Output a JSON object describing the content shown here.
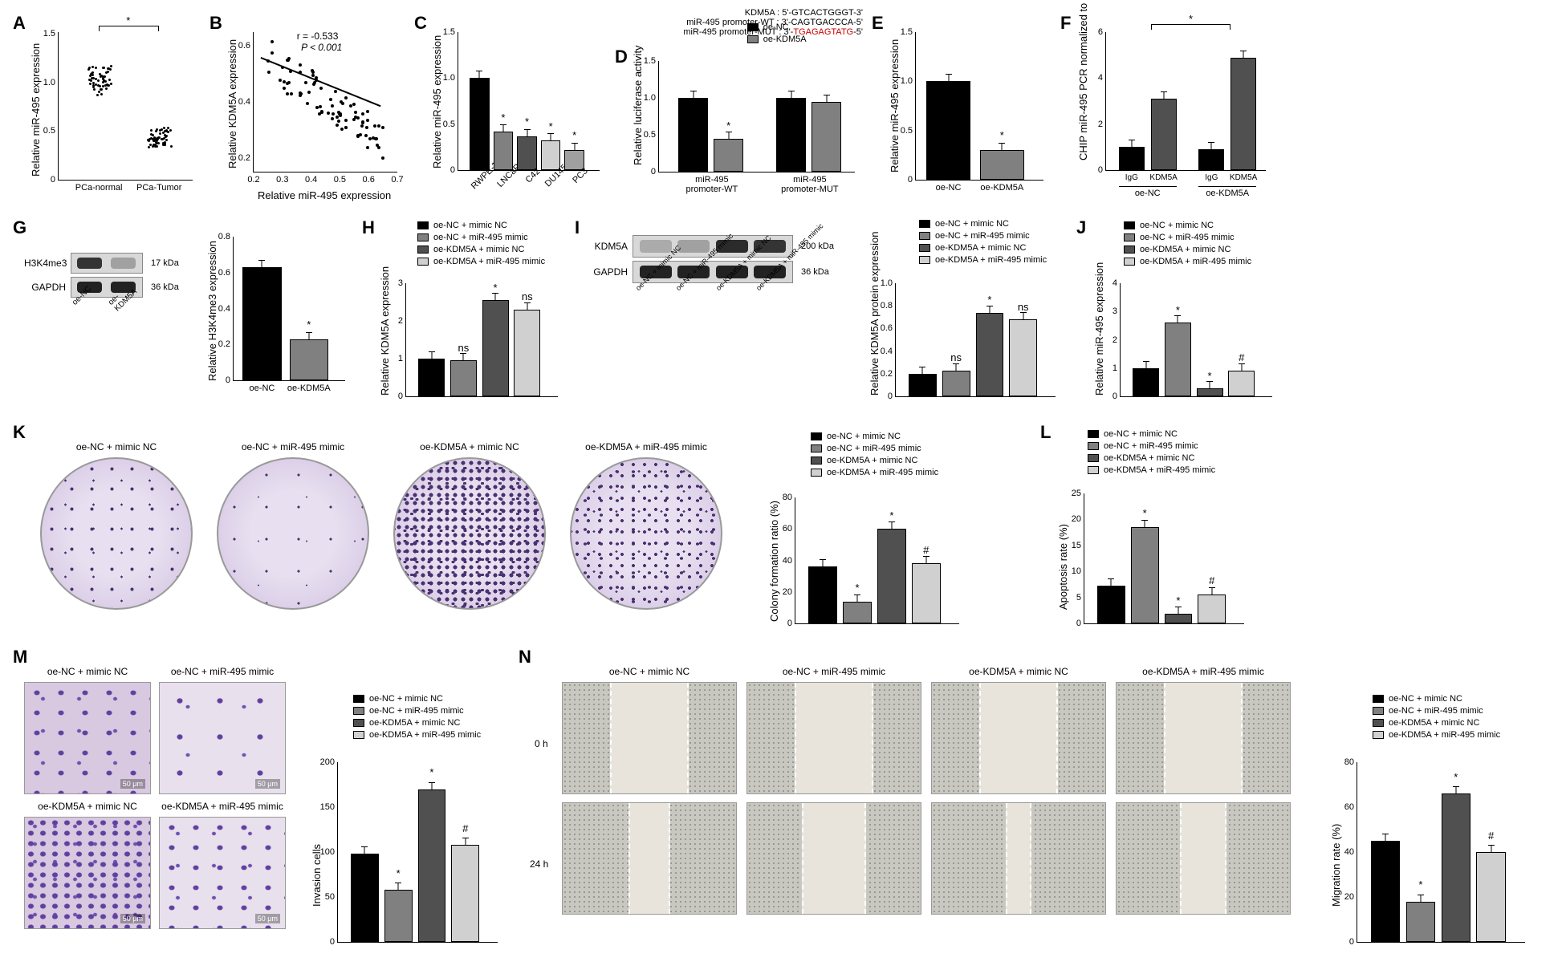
{
  "colors": {
    "c1": "#000000",
    "c2": "#808080",
    "c3": "#505050",
    "c4": "#d0d0d0",
    "bg": "#ffffff"
  },
  "legend4": {
    "items": [
      "oe-NC + mimic NC",
      "oe-NC + miR-495 mimic",
      "oe-KDM5A + mimic NC",
      "oe-KDM5A + miR-495 mimic"
    ]
  },
  "legend2": {
    "items": [
      "oe-NC",
      "oe-KDM5A"
    ]
  },
  "A": {
    "label": "A",
    "ylabel": "Relative miR-495 expression",
    "yticks": [
      "0",
      "0.5",
      "1.0",
      "1.5"
    ],
    "groups": [
      "PCa-normal",
      "PCa-Tumor"
    ],
    "means": [
      1.0,
      0.42
    ],
    "spread": [
      0.15,
      0.1
    ],
    "sig": "*",
    "n": 60
  },
  "B": {
    "label": "B",
    "ylabel": "Relative KDM5A expression",
    "xlabel": "Relative miR-495 expression",
    "yticks": [
      "0.2",
      "0.4",
      "0.6"
    ],
    "xticks": [
      "0.2",
      "0.3",
      "0.4",
      "0.5",
      "0.6",
      "0.7"
    ],
    "stat_r": "r = -0.533",
    "stat_p": "P < 0.001",
    "ylim": [
      0.15,
      0.65
    ],
    "xlim": [
      0.2,
      0.7
    ]
  },
  "C": {
    "label": "C",
    "ylabel": "Relative miR-495 expression",
    "yticks": [
      "0",
      "0.5",
      "1.0",
      "1.5"
    ],
    "cats": [
      "RWPE-1",
      "LNCaP",
      "C42",
      "DU145",
      "PC3"
    ],
    "vals": [
      1.0,
      0.42,
      0.37,
      0.32,
      0.22
    ],
    "sig": [
      "",
      "*",
      "*",
      "*",
      "*"
    ],
    "colors": [
      "#000000",
      "#808080",
      "#505050",
      "#d0d0d0",
      "#a0a0a0"
    ]
  },
  "D": {
    "label": "D",
    "seq1": "KDM5A :   5'-GTCACTGGGT-3'",
    "seq2": "miR-495 promoter-WT :   3'-CAGTGACCCA-5'",
    "seq3": "miR-495 promoter-MUT :   3'-",
    "seq3_mut": "TGAGAGTATG",
    "seq3_end": "-5'",
    "ylabel": "Relative luciferase activity",
    "yticks": [
      "0",
      "0.5",
      "1.0",
      "1.5"
    ],
    "groups": [
      "miR-495\npromoter-WT",
      "miR-495\npromoter-MUT"
    ],
    "vals": [
      [
        1.0,
        0.45
      ],
      [
        1.0,
        0.95
      ]
    ],
    "sig": [
      [
        "",
        "*"
      ],
      [
        "",
        ""
      ]
    ]
  },
  "E": {
    "label": "E",
    "ylabel": "Relative miR-495 expression",
    "yticks": [
      "0",
      "0.5",
      "1.0",
      "1.5"
    ],
    "cats": [
      "oe-NC",
      "oe-KDM5A"
    ],
    "vals": [
      1.0,
      0.3
    ],
    "sig": [
      "",
      "*"
    ],
    "colors": [
      "#000000",
      "#808080"
    ]
  },
  "F": {
    "label": "F",
    "ylabel": "CHIP miR-495 PCR\nnormalized to Input",
    "yticks": [
      "0",
      "2",
      "4",
      "6"
    ],
    "groups": [
      "oe-NC",
      "oe-KDM5A"
    ],
    "subcats": [
      "IgG",
      "KDM5A"
    ],
    "vals": [
      [
        1.0,
        3.1
      ],
      [
        0.9,
        4.9
      ]
    ],
    "sig_bracket": "*",
    "colors": [
      "#000000",
      "#505050"
    ]
  },
  "G": {
    "label": "G",
    "blots": [
      {
        "name": "H3K4me3",
        "size": "17 kDa",
        "bands": [
          0.9,
          0.3
        ]
      },
      {
        "name": "GAPDH",
        "size": "36 kDa",
        "bands": [
          0.95,
          0.95
        ]
      }
    ],
    "blot_cols": [
      "oe-NC",
      "oe-KDM5A"
    ],
    "ylabel": "Relative H3K4me3 expression",
    "yticks": [
      "0",
      "0.2",
      "0.4",
      "0.6",
      "0.8"
    ],
    "cats": [
      "oe-NC",
      "oe-KDM5A"
    ],
    "vals": [
      0.63,
      0.23
    ],
    "sig": [
      "",
      "*"
    ],
    "colors": [
      "#000000",
      "#808080"
    ]
  },
  "H": {
    "label": "H",
    "ylabel": "Relative KDM5A expression",
    "yticks": [
      "0",
      "1",
      "2",
      "3"
    ],
    "vals": [
      1.0,
      0.95,
      2.55,
      2.3
    ],
    "sig": [
      "",
      "ns",
      "*",
      "ns"
    ]
  },
  "I": {
    "label": "I",
    "blots": [
      {
        "name": "KDM5A",
        "size": "200 kDa",
        "bands": [
          0.25,
          0.3,
          0.95,
          0.9
        ]
      },
      {
        "name": "GAPDH",
        "size": "36 kDa",
        "bands": [
          0.95,
          0.95,
          0.95,
          0.95
        ]
      }
    ],
    "blot_cols": [
      "oe-NC + mimic NC",
      "oe-NC + miR-495 mimic",
      "oe-KDM5A + mimic NC",
      "oe-KDM5A + miR-495 mimic"
    ],
    "ylabel": "Relative KDM5A\nprotein expression",
    "yticks": [
      "0",
      "0.2",
      "0.4",
      "0.6",
      "0.8",
      "1.0"
    ],
    "vals": [
      0.2,
      0.23,
      0.74,
      0.68
    ],
    "sig": [
      "",
      "ns",
      "*",
      "ns"
    ]
  },
  "J": {
    "label": "J",
    "ylabel": "Relative miR-495 expression",
    "yticks": [
      "0",
      "1",
      "2",
      "3",
      "4"
    ],
    "vals": [
      1.0,
      2.6,
      0.28,
      0.92
    ],
    "sig": [
      "",
      "*",
      "*",
      "#"
    ]
  },
  "K": {
    "label": "K",
    "images": [
      "oe-NC + mimic NC",
      "oe-NC + miR-495 mimic",
      "oe-KDM5A + mimic NC",
      "oe-KDM5A + miR-495 mimic"
    ],
    "density": [
      "dots-med",
      "dots-sparse",
      "dots-vdense",
      "dots-dense"
    ],
    "ylabel": "Colony formation ratio (%)",
    "yticks": [
      "0",
      "20",
      "40",
      "60",
      "80"
    ],
    "vals": [
      36,
      14,
      60,
      38
    ],
    "sig": [
      "",
      "*",
      "*",
      "#"
    ]
  },
  "L": {
    "label": "L",
    "ylabel": "Apoptosis rate (%)",
    "yticks": [
      "0",
      "5",
      "10",
      "15",
      "20",
      "25"
    ],
    "vals": [
      7.2,
      18.5,
      1.8,
      5.6
    ],
    "sig": [
      "",
      "*",
      "*",
      "#"
    ]
  },
  "M": {
    "label": "M",
    "images": [
      "oe-NC + mimic NC",
      "oe-NC + miR-495 mimic",
      "oe-KDM5A + mimic NC",
      "oe-KDM5A + miR-495 mimic"
    ],
    "density": [
      "micro-cells",
      "micro-cells sparse",
      "micro-cells dense",
      "micro-cells"
    ],
    "scalebar": "50 μm",
    "ylabel": "Invasion cells",
    "yticks": [
      "0",
      "50",
      "100",
      "150",
      "200"
    ],
    "vals": [
      98,
      58,
      170,
      108
    ],
    "sig": [
      "",
      "*",
      "*",
      "#"
    ]
  },
  "N": {
    "label": "N",
    "cols": [
      "oe-NC + mimic NC",
      "oe-NC + miR-495 mimic",
      "oe-KDM5A + mimic NC",
      "oe-KDM5A + miR-495 mimic"
    ],
    "rows": [
      "0 h",
      "24 h"
    ],
    "gaps": {
      "0h": [
        0.45,
        0.45,
        0.45,
        0.45
      ],
      "24h": [
        0.24,
        0.37,
        0.15,
        0.27
      ]
    },
    "ylabel": "Migration rate (%)",
    "yticks": [
      "0",
      "20",
      "40",
      "60",
      "80"
    ],
    "vals": [
      45,
      18,
      66,
      40
    ],
    "sig": [
      "",
      "*",
      "*",
      "#"
    ]
  }
}
